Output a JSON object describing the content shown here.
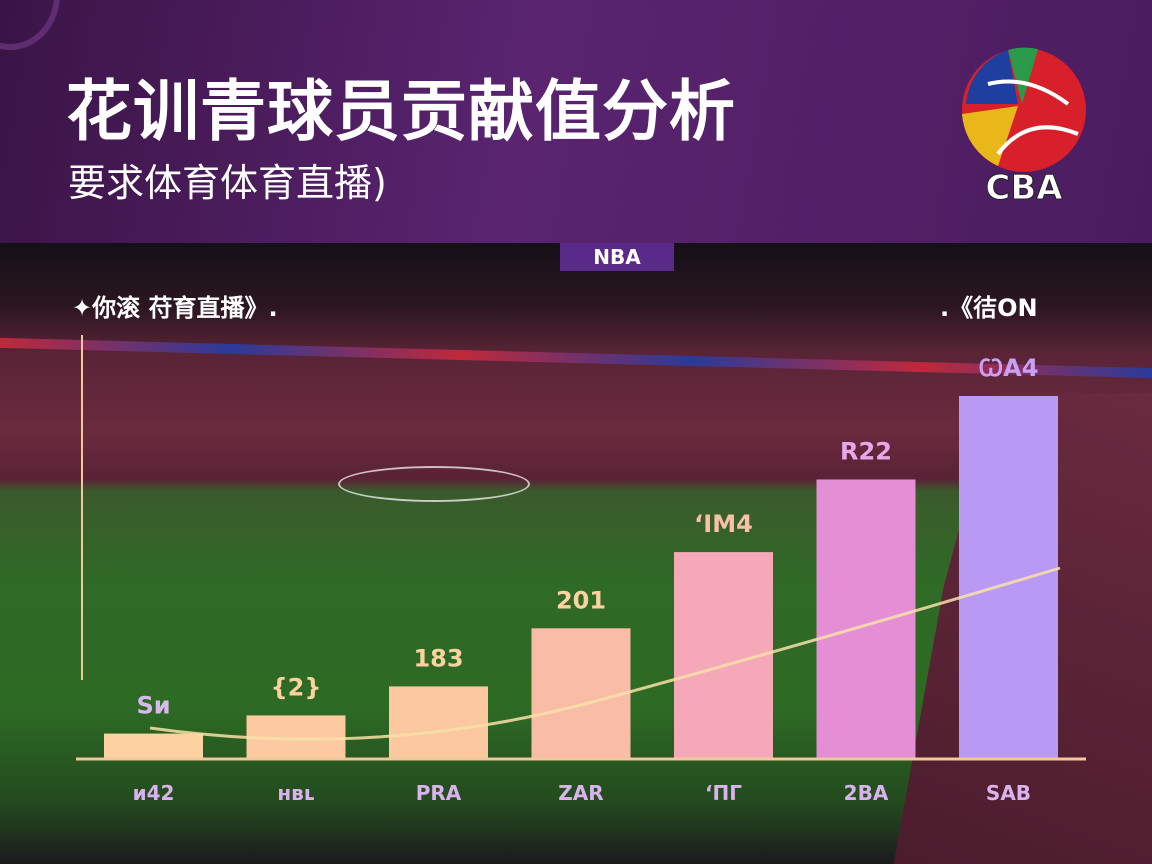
{
  "header": {
    "title": "花训青球员贡献值分析",
    "subtitle": "要求体育体育直播)",
    "logo_text": "CBA"
  },
  "scene": {
    "scoreboard": "NBA",
    "caption_left": "✦你滚 苻育直播》.",
    "caption_right": ".《㣟ON"
  },
  "chart_data": {
    "type": "bar",
    "title": "",
    "categories": [
      "ᴎ42",
      "ʜʙʟ",
      "PRA",
      "ZAR",
      "‘ΠΓ",
      "2BA",
      "SAB"
    ],
    "data_labels": [
      "Sᴎ",
      "{2}",
      "183",
      "201",
      "‘ΙM4",
      "R22",
      "ꞶA4"
    ],
    "values": [
      7,
      12,
      20,
      36,
      57,
      77,
      100
    ],
    "ylim": [
      0,
      100
    ],
    "grid": false,
    "trend_line": true,
    "colors": [
      "#fcd3a0",
      "#fcc9a0",
      "#fbc8a0",
      "#f9bca6",
      "#f4a8b8",
      "#e48ed6",
      "#b89af4"
    ],
    "label_colors": [
      "#d8b8ee",
      "#fcd3a0",
      "#fcd3a0",
      "#fcd3a0",
      "#f9c0a8",
      "#e6a8e8",
      "#c8a0f4"
    ],
    "axis_color": "#f2c79a"
  }
}
